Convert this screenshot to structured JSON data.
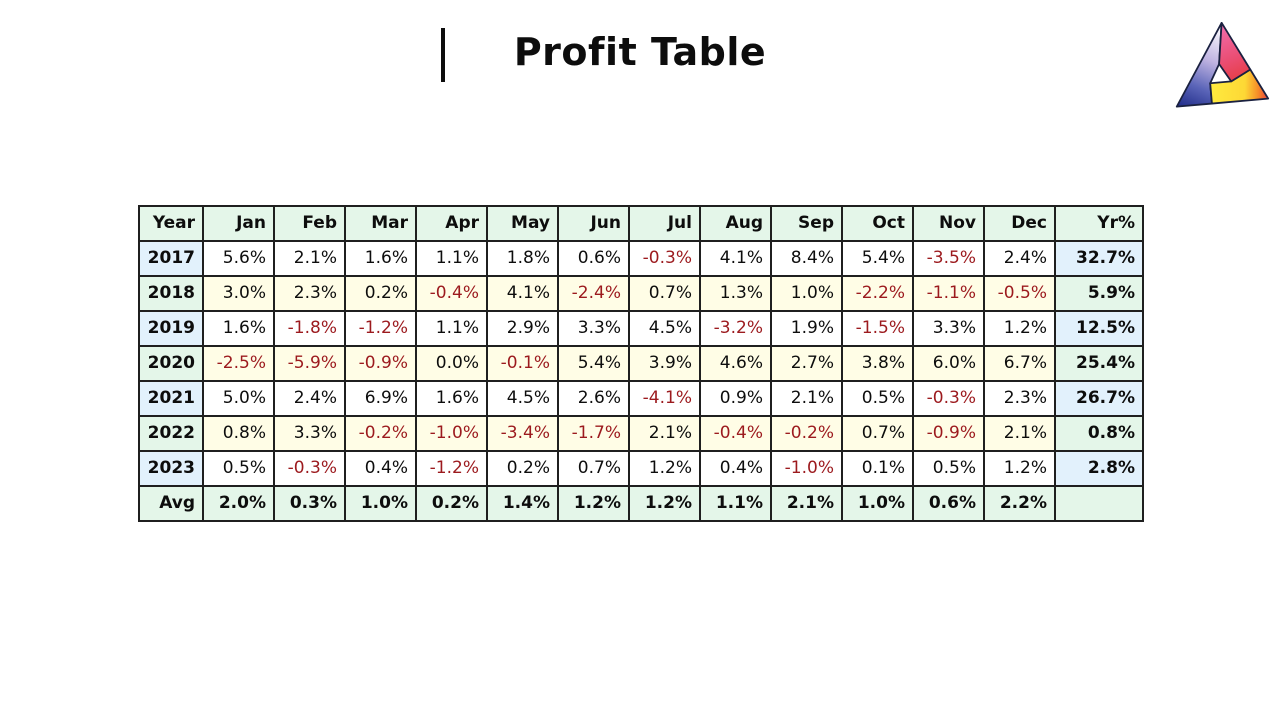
{
  "title": "Profit Table",
  "logo": {
    "name": "impossible-triangle-logo",
    "colors": {
      "left_face_top": "#ffffff",
      "left_face_bottom": "#27338f",
      "right_face_top": "#f06aa7",
      "right_face_bottom": "#e63a3c",
      "bottom_face_left": "#ffe93e",
      "bottom_face_right": "#e83f3a",
      "outline": "#1a2140"
    }
  },
  "colors": {
    "header_bg": "#e4f6e9",
    "year_col_blue": "#e2f1fc",
    "year_col_green": "#e4f6e9",
    "row_white": "#ffffff",
    "row_cream": "#fffde6",
    "negative_text": "#9c1a1e",
    "positive_text": "#0d0d0d",
    "border": "#1f1f1f"
  },
  "table": {
    "columns": [
      "Year",
      "Jan",
      "Feb",
      "Mar",
      "Apr",
      "May",
      "Jun",
      "Jul",
      "Aug",
      "Sep",
      "Oct",
      "Nov",
      "Dec",
      "Yr%"
    ],
    "rows": [
      {
        "year": "2017",
        "months": [
          "5.6%",
          "2.1%",
          "1.6%",
          "1.1%",
          "1.8%",
          "0.6%",
          "-0.3%",
          "4.1%",
          "8.4%",
          "5.4%",
          "-3.5%",
          "2.4%"
        ],
        "yr": "32.7%"
      },
      {
        "year": "2018",
        "months": [
          "3.0%",
          "2.3%",
          "0.2%",
          "-0.4%",
          "4.1%",
          "-2.4%",
          "0.7%",
          "1.3%",
          "1.0%",
          "-2.2%",
          "-1.1%",
          "-0.5%"
        ],
        "yr": "5.9%"
      },
      {
        "year": "2019",
        "months": [
          "1.6%",
          "-1.8%",
          "-1.2%",
          "1.1%",
          "2.9%",
          "3.3%",
          "4.5%",
          "-3.2%",
          "1.9%",
          "-1.5%",
          "3.3%",
          "1.2%"
        ],
        "yr": "12.5%"
      },
      {
        "year": "2020",
        "months": [
          "-2.5%",
          "-5.9%",
          "-0.9%",
          "0.0%",
          "-0.1%",
          "5.4%",
          "3.9%",
          "4.6%",
          "2.7%",
          "3.8%",
          "6.0%",
          "6.7%"
        ],
        "yr": "25.4%"
      },
      {
        "year": "2021",
        "months": [
          "5.0%",
          "2.4%",
          "6.9%",
          "1.6%",
          "4.5%",
          "2.6%",
          "-4.1%",
          "0.9%",
          "2.1%",
          "0.5%",
          "-0.3%",
          "2.3%"
        ],
        "yr": "26.7%"
      },
      {
        "year": "2022",
        "months": [
          "0.8%",
          "3.3%",
          "-0.2%",
          "-1.0%",
          "-3.4%",
          "-1.7%",
          "2.1%",
          "-0.4%",
          "-0.2%",
          "0.7%",
          "-0.9%",
          "2.1%"
        ],
        "yr": "0.8%"
      },
      {
        "year": "2023",
        "months": [
          "0.5%",
          "-0.3%",
          "0.4%",
          "-1.2%",
          "0.2%",
          "0.7%",
          "1.2%",
          "0.4%",
          "-1.0%",
          "0.1%",
          "0.5%",
          "1.2%"
        ],
        "yr": "2.8%"
      }
    ],
    "avg_row": {
      "label": "Avg",
      "months": [
        "2.0%",
        "0.3%",
        "1.0%",
        "0.2%",
        "1.4%",
        "1.2%",
        "1.2%",
        "1.1%",
        "2.1%",
        "1.0%",
        "0.6%",
        "2.2%"
      ],
      "yr": ""
    }
  },
  "chart_data": {
    "type": "table",
    "title": "Profit Table",
    "columns": [
      "Year",
      "Jan",
      "Feb",
      "Mar",
      "Apr",
      "May",
      "Jun",
      "Jul",
      "Aug",
      "Sep",
      "Oct",
      "Nov",
      "Dec",
      "Yr%"
    ],
    "unit": "percent",
    "rows": [
      {
        "year": 2017,
        "monthly": [
          5.6,
          2.1,
          1.6,
          1.1,
          1.8,
          0.6,
          -0.3,
          4.1,
          8.4,
          5.4,
          -3.5,
          2.4
        ],
        "yearly": 32.7
      },
      {
        "year": 2018,
        "monthly": [
          3.0,
          2.3,
          0.2,
          -0.4,
          4.1,
          -2.4,
          0.7,
          1.3,
          1.0,
          -2.2,
          -1.1,
          -0.5
        ],
        "yearly": 5.9
      },
      {
        "year": 2019,
        "monthly": [
          1.6,
          -1.8,
          -1.2,
          1.1,
          2.9,
          3.3,
          4.5,
          -3.2,
          1.9,
          -1.5,
          3.3,
          1.2
        ],
        "yearly": 12.5
      },
      {
        "year": 2020,
        "monthly": [
          -2.5,
          -5.9,
          -0.9,
          0.0,
          -0.1,
          5.4,
          3.9,
          4.6,
          2.7,
          3.8,
          6.0,
          6.7
        ],
        "yearly": 25.4
      },
      {
        "year": 2021,
        "monthly": [
          5.0,
          2.4,
          6.9,
          1.6,
          4.5,
          2.6,
          -4.1,
          0.9,
          2.1,
          0.5,
          -0.3,
          2.3
        ],
        "yearly": 26.7
      },
      {
        "year": 2022,
        "monthly": [
          0.8,
          3.3,
          -0.2,
          -1.0,
          -3.4,
          -1.7,
          2.1,
          -0.4,
          -0.2,
          0.7,
          -0.9,
          2.1
        ],
        "yearly": 0.8
      },
      {
        "year": 2023,
        "monthly": [
          0.5,
          -0.3,
          0.4,
          -1.2,
          0.2,
          0.7,
          1.2,
          0.4,
          -1.0,
          0.1,
          0.5,
          1.2
        ],
        "yearly": 2.8
      }
    ],
    "average_monthly": [
      2.0,
      0.3,
      1.0,
      0.2,
      1.4,
      1.2,
      1.2,
      1.1,
      2.1,
      1.0,
      0.6,
      2.2
    ]
  }
}
